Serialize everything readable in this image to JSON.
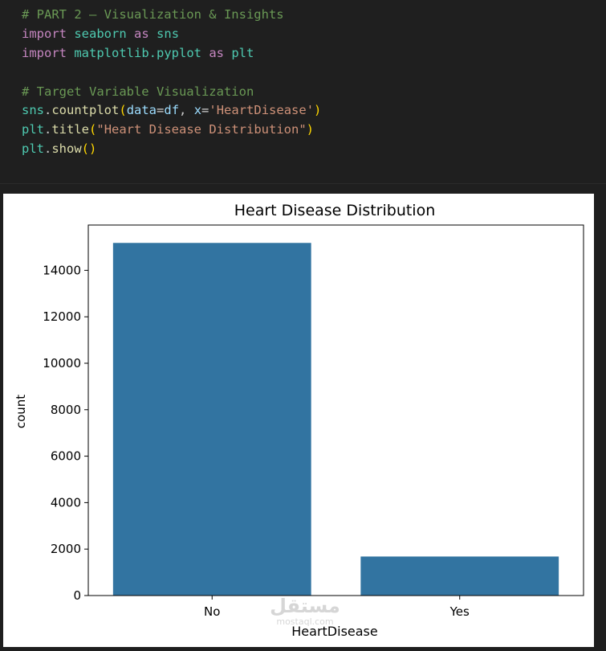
{
  "code": {
    "lines": [
      [
        {
          "t": "# PART 2 — Visualization & Insights",
          "c": "c-comment"
        }
      ],
      [
        {
          "t": "import",
          "c": "c-kw"
        },
        {
          "t": " ",
          "c": "c-plain"
        },
        {
          "t": "seaborn",
          "c": "c-mod"
        },
        {
          "t": " ",
          "c": "c-plain"
        },
        {
          "t": "as",
          "c": "c-kw"
        },
        {
          "t": " ",
          "c": "c-plain"
        },
        {
          "t": "sns",
          "c": "c-mod"
        }
      ],
      [
        {
          "t": "import",
          "c": "c-kw"
        },
        {
          "t": " ",
          "c": "c-plain"
        },
        {
          "t": "matplotlib.pyplot",
          "c": "c-mod"
        },
        {
          "t": " ",
          "c": "c-plain"
        },
        {
          "t": "as",
          "c": "c-kw"
        },
        {
          "t": " ",
          "c": "c-plain"
        },
        {
          "t": "plt",
          "c": "c-mod"
        }
      ],
      [],
      [
        {
          "t": "# Target Variable Visualization",
          "c": "c-comment"
        }
      ],
      [
        {
          "t": "sns",
          "c": "c-mod"
        },
        {
          "t": ".",
          "c": "c-plain"
        },
        {
          "t": "countplot",
          "c": "c-fn"
        },
        {
          "t": "(",
          "c": "c-paren"
        },
        {
          "t": "data",
          "c": "c-var"
        },
        {
          "t": "=",
          "c": "c-plain"
        },
        {
          "t": "df",
          "c": "c-var"
        },
        {
          "t": ", ",
          "c": "c-plain"
        },
        {
          "t": "x",
          "c": "c-var"
        },
        {
          "t": "=",
          "c": "c-plain"
        },
        {
          "t": "'HeartDisease'",
          "c": "c-str"
        },
        {
          "t": ")",
          "c": "c-paren"
        }
      ],
      [
        {
          "t": "plt",
          "c": "c-mod"
        },
        {
          "t": ".",
          "c": "c-plain"
        },
        {
          "t": "title",
          "c": "c-fn"
        },
        {
          "t": "(",
          "c": "c-paren"
        },
        {
          "t": "\"Heart Disease Distribution\"",
          "c": "c-str"
        },
        {
          "t": ")",
          "c": "c-paren"
        }
      ],
      [
        {
          "t": "plt",
          "c": "c-mod"
        },
        {
          "t": ".",
          "c": "c-plain"
        },
        {
          "t": "show",
          "c": "c-fn"
        },
        {
          "t": "()",
          "c": "c-paren"
        }
      ]
    ]
  },
  "chart_data": {
    "type": "bar",
    "title": "Heart Disease Distribution",
    "xlabel": "HeartDisease",
    "ylabel": "count",
    "categories": [
      "No",
      "Yes"
    ],
    "values": [
      15180,
      1680
    ],
    "ylim": [
      0,
      15950
    ],
    "yticks": [
      0,
      2000,
      4000,
      6000,
      8000,
      10000,
      12000,
      14000
    ],
    "bar_color": "#3274a1",
    "grid": false,
    "legend": false
  },
  "watermark": {
    "logo": "مستقل",
    "sub": "mostaql.com"
  }
}
